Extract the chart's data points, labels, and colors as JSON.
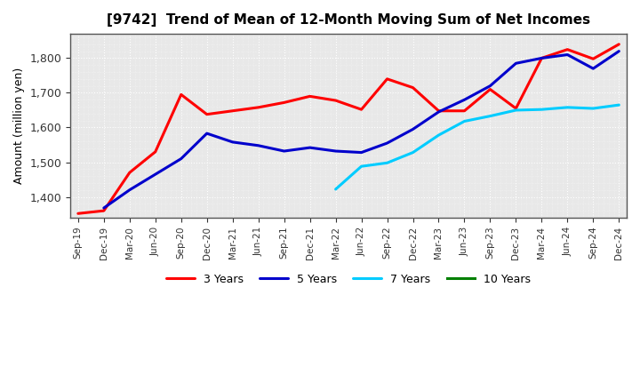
{
  "title": "[9742]  Trend of Mean of 12-Month Moving Sum of Net Incomes",
  "ylabel": "Amount (million yen)",
  "background_color": "#ffffff",
  "plot_bg_color": "#e8e8e8",
  "grid_color": "#ffffff",
  "ylim": [
    1340,
    1870
  ],
  "yticks": [
    1400,
    1500,
    1600,
    1700,
    1800
  ],
  "x_labels": [
    "Sep-19",
    "Dec-19",
    "Mar-20",
    "Jun-20",
    "Sep-20",
    "Dec-20",
    "Mar-21",
    "Jun-21",
    "Sep-21",
    "Dec-21",
    "Mar-22",
    "Jun-22",
    "Sep-22",
    "Dec-22",
    "Mar-23",
    "Jun-23",
    "Sep-23",
    "Dec-23",
    "Mar-24",
    "Jun-24",
    "Sep-24",
    "Dec-24"
  ],
  "series": {
    "3 Years": {
      "color": "#ff0000",
      "data": [
        [
          "Sep-19",
          1352
        ],
        [
          "Dec-19",
          1360
        ],
        [
          "Mar-20",
          1470
        ],
        [
          "Jun-20",
          1530
        ],
        [
          "Sep-20",
          1695
        ],
        [
          "Dec-20",
          1638
        ],
        [
          "Mar-21",
          1648
        ],
        [
          "Jun-21",
          1658
        ],
        [
          "Sep-21",
          1672
        ],
        [
          "Dec-21",
          1690
        ],
        [
          "Mar-22",
          1678
        ],
        [
          "Jun-22",
          1652
        ],
        [
          "Sep-22",
          1740
        ],
        [
          "Dec-22",
          1715
        ],
        [
          "Mar-23",
          1648
        ],
        [
          "Jun-23",
          1648
        ],
        [
          "Sep-23",
          1710
        ],
        [
          "Dec-23",
          1655
        ],
        [
          "Mar-24",
          1800
        ],
        [
          "Jun-24",
          1825
        ],
        [
          "Sep-24",
          1798
        ],
        [
          "Dec-24",
          1840
        ]
      ]
    },
    "5 Years": {
      "color": "#0000cc",
      "data": [
        [
          "Dec-19",
          1368
        ],
        [
          "Mar-20",
          1420
        ],
        [
          "Jun-20",
          1465
        ],
        [
          "Sep-20",
          1510
        ],
        [
          "Dec-20",
          1583
        ],
        [
          "Mar-21",
          1558
        ],
        [
          "Jun-21",
          1548
        ],
        [
          "Sep-21",
          1532
        ],
        [
          "Dec-21",
          1542
        ],
        [
          "Mar-22",
          1532
        ],
        [
          "Jun-22",
          1528
        ],
        [
          "Sep-22",
          1555
        ],
        [
          "Dec-22",
          1595
        ],
        [
          "Mar-23",
          1645
        ],
        [
          "Jun-23",
          1680
        ],
        [
          "Sep-23",
          1720
        ],
        [
          "Dec-23",
          1785
        ],
        [
          "Mar-24",
          1800
        ],
        [
          "Jun-24",
          1810
        ],
        [
          "Sep-24",
          1770
        ],
        [
          "Dec-24",
          1820
        ]
      ]
    },
    "7 Years": {
      "color": "#00ccff",
      "data": [
        [
          "Mar-22",
          1422
        ],
        [
          "Jun-22",
          1488
        ],
        [
          "Sep-22",
          1498
        ],
        [
          "Dec-22",
          1528
        ],
        [
          "Mar-23",
          1578
        ],
        [
          "Jun-23",
          1618
        ],
        [
          "Sep-23",
          1633
        ],
        [
          "Dec-23",
          1650
        ],
        [
          "Mar-24",
          1652
        ],
        [
          "Jun-24",
          1658
        ],
        [
          "Sep-24",
          1655
        ],
        [
          "Dec-24",
          1665
        ]
      ]
    },
    "10 Years": {
      "color": "#008000",
      "data": []
    }
  },
  "legend_entries": [
    "3 Years",
    "5 Years",
    "7 Years",
    "10 Years"
  ],
  "legend_colors": [
    "#ff0000",
    "#0000cc",
    "#00ccff",
    "#008000"
  ],
  "linewidth": 2.2
}
